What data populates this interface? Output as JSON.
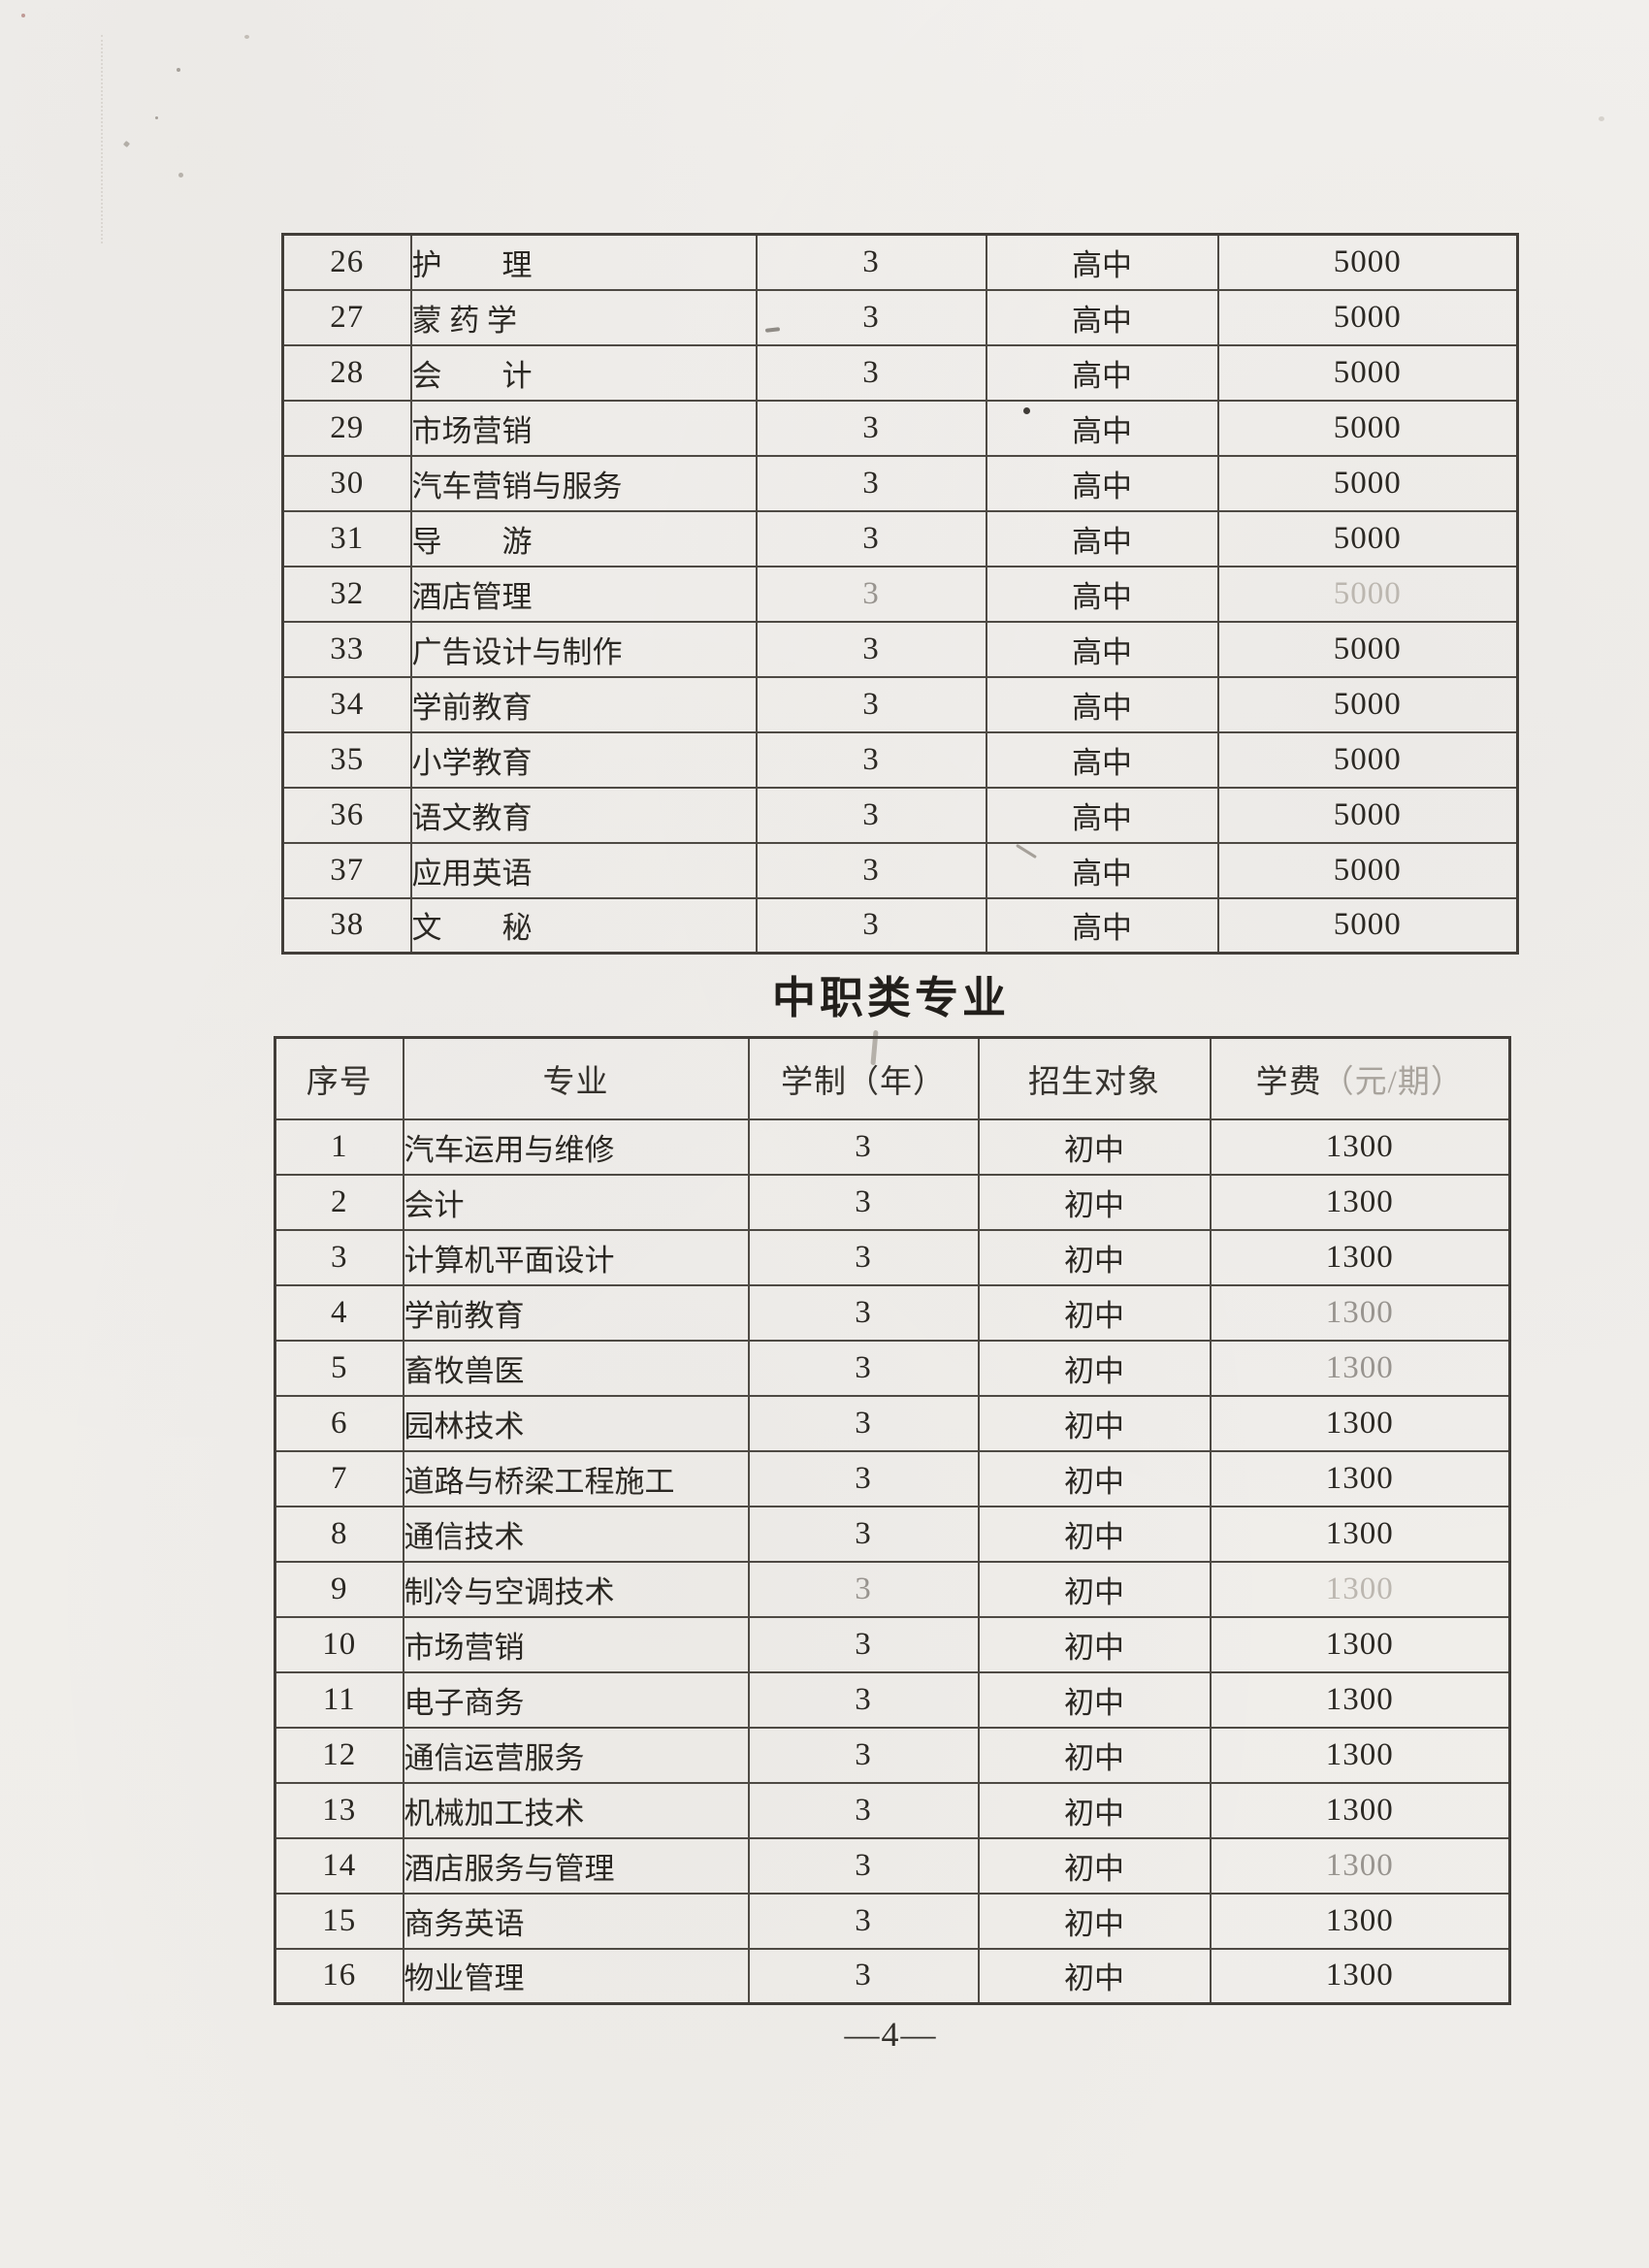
{
  "page": {
    "number_label": "—4—"
  },
  "section": {
    "heading": "中职类专业"
  },
  "table_senior": {
    "note": "continuation table, no header on this page; all rows senior-high intake",
    "rows": [
      {
        "no": "26",
        "major": "护　　理",
        "years": "3",
        "target": "高中",
        "fee": "5000"
      },
      {
        "no": "27",
        "major": "蒙 药 学",
        "years": "3",
        "target": "高中",
        "fee": "5000"
      },
      {
        "no": "28",
        "major": "会　　计",
        "years": "3",
        "target": "高中",
        "fee": "5000"
      },
      {
        "no": "29",
        "major": "市场营销",
        "years": "3",
        "target": "高中",
        "fee": "5000"
      },
      {
        "no": "30",
        "major": "汽车营销与服务",
        "years": "3",
        "target": "高中",
        "fee": "5000"
      },
      {
        "no": "31",
        "major": "导　　游",
        "years": "3",
        "target": "高中",
        "fee": "5000"
      },
      {
        "no": "32",
        "major": "酒店管理",
        "years": "3",
        "target": "高中",
        "fee": "5000",
        "yf": 1,
        "ff": 2
      },
      {
        "no": "33",
        "major": "广告设计与制作",
        "years": "3",
        "target": "高中",
        "fee": "5000"
      },
      {
        "no": "34",
        "major": "学前教育",
        "years": "3",
        "target": "高中",
        "fee": "5000"
      },
      {
        "no": "35",
        "major": "小学教育",
        "years": "3",
        "target": "高中",
        "fee": "5000"
      },
      {
        "no": "36",
        "major": "语文教育",
        "years": "3",
        "target": "高中",
        "fee": "5000"
      },
      {
        "no": "37",
        "major": "应用英语",
        "years": "3",
        "target": "高中",
        "fee": "5000"
      },
      {
        "no": "38",
        "major": "文　　秘",
        "years": "3",
        "target": "高中",
        "fee": "5000"
      }
    ]
  },
  "table_vocational": {
    "headers": {
      "no": "序号",
      "major": "专业",
      "years": "学制（年）",
      "target": "招生对象",
      "fee_main": "学费",
      "fee_sub": "（元/期）"
    },
    "rows": [
      {
        "no": "1",
        "major": "汽车运用与维修",
        "years": "3",
        "target": "初中",
        "fee": "1300"
      },
      {
        "no": "2",
        "major": "会计",
        "years": "3",
        "target": "初中",
        "fee": "1300"
      },
      {
        "no": "3",
        "major": "计算机平面设计",
        "years": "3",
        "target": "初中",
        "fee": "1300"
      },
      {
        "no": "4",
        "major": "学前教育",
        "years": "3",
        "target": "初中",
        "fee": "1300",
        "ff": 1
      },
      {
        "no": "5",
        "major": "畜牧兽医",
        "years": "3",
        "target": "初中",
        "fee": "1300",
        "ff": 1
      },
      {
        "no": "6",
        "major": "园林技术",
        "years": "3",
        "target": "初中",
        "fee": "1300"
      },
      {
        "no": "7",
        "major": "道路与桥梁工程施工",
        "years": "3",
        "target": "初中",
        "fee": "1300"
      },
      {
        "no": "8",
        "major": "通信技术",
        "years": "3",
        "target": "初中",
        "fee": "1300"
      },
      {
        "no": "9",
        "major": "制冷与空调技术",
        "years": "3",
        "target": "初中",
        "fee": "1300",
        "yf": 1,
        "ff": 2
      },
      {
        "no": "10",
        "major": "市场营销",
        "years": "3",
        "target": "初中",
        "fee": "1300"
      },
      {
        "no": "11",
        "major": "电子商务",
        "years": "3",
        "target": "初中",
        "fee": "1300"
      },
      {
        "no": "12",
        "major": "通信运营服务",
        "years": "3",
        "target": "初中",
        "fee": "1300"
      },
      {
        "no": "13",
        "major": "机械加工技术",
        "years": "3",
        "target": "初中",
        "fee": "1300"
      },
      {
        "no": "14",
        "major": "酒店服务与管理",
        "years": "3",
        "target": "初中",
        "fee": "1300",
        "ff": 1
      },
      {
        "no": "15",
        "major": "商务英语",
        "years": "3",
        "target": "初中",
        "fee": "1300"
      },
      {
        "no": "16",
        "major": "物业管理",
        "years": "3",
        "target": "初中",
        "fee": "1300"
      }
    ]
  }
}
